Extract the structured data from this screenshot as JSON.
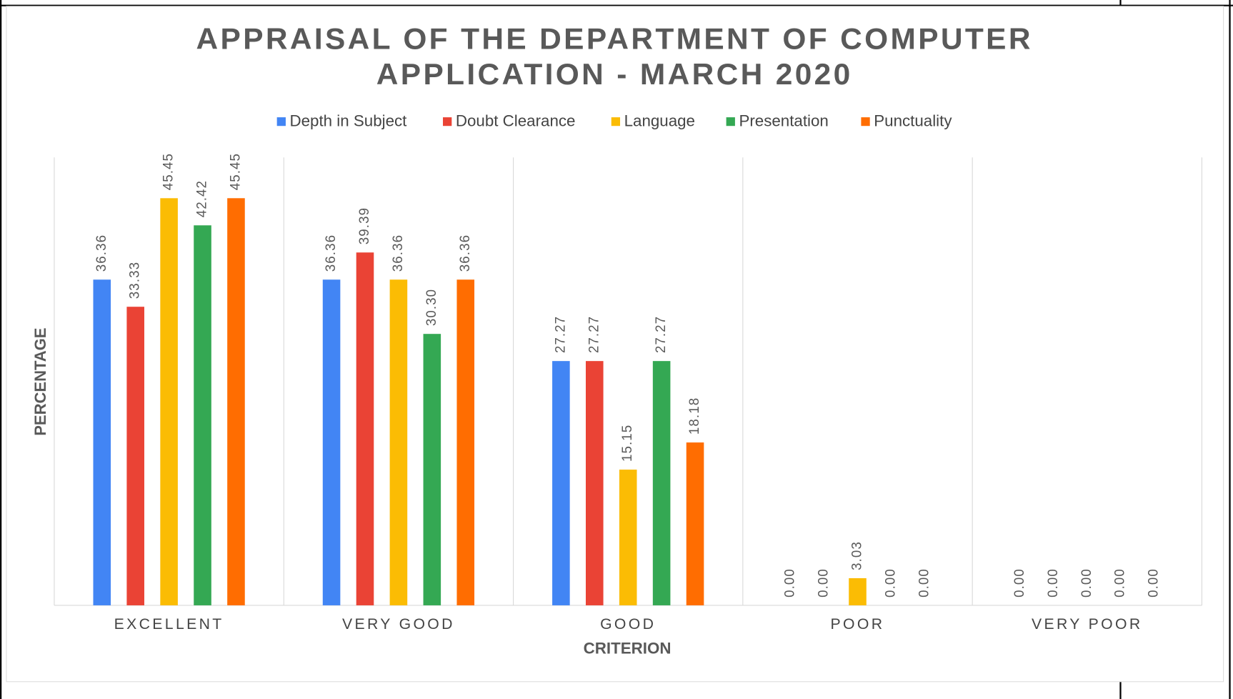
{
  "chart_data": {
    "type": "bar",
    "title": "APPRAISAL OF THE DEPARTMENT OF COMPUTER APPLICATION - MARCH 2020",
    "title_lines": [
      "APPRAISAL OF THE DEPARTMENT OF COMPUTER",
      "APPLICATION - MARCH 2020"
    ],
    "x_label": "CRITERION",
    "y_label": "PERCENTAGE",
    "categories": [
      "EXCELLENT",
      "VERY GOOD",
      "GOOD",
      "POOR",
      "VERY POOR"
    ],
    "series": [
      {
        "name": "Depth in Subject",
        "color": "#4285f4",
        "values": [
          36.36,
          36.36,
          27.27,
          0,
          0
        ],
        "value_labels": [
          "36.36",
          "36.36",
          "27.27",
          "0.00",
          "0.00"
        ]
      },
      {
        "name": "Doubt Clearance",
        "color": "#ea4335",
        "values": [
          33.33,
          39.39,
          27.27,
          0,
          0
        ],
        "value_labels": [
          "33.33",
          "39.39",
          "27.27",
          "0.00",
          "0.00"
        ]
      },
      {
        "name": "Language",
        "color": "#fbbc04",
        "values": [
          45.45,
          36.36,
          15.15,
          3.03,
          0
        ],
        "value_labels": [
          "45.45",
          "36.36",
          "15.15",
          "3.03",
          "0.00"
        ]
      },
      {
        "name": "Presentation",
        "color": "#34a853",
        "values": [
          42.42,
          30.3,
          27.27,
          0,
          0
        ],
        "value_labels": [
          "42.42",
          "30.30",
          "27.27",
          "0.00",
          "0.00"
        ]
      },
      {
        "name": "Punctuality",
        "color": "#ff6d01",
        "values": [
          45.45,
          36.36,
          18.18,
          0,
          0
        ],
        "value_labels": [
          "45.45",
          "36.36",
          "18.18",
          "0.00",
          "0.00"
        ]
      }
    ],
    "ylim": [
      0,
      50
    ],
    "legend": "top"
  }
}
